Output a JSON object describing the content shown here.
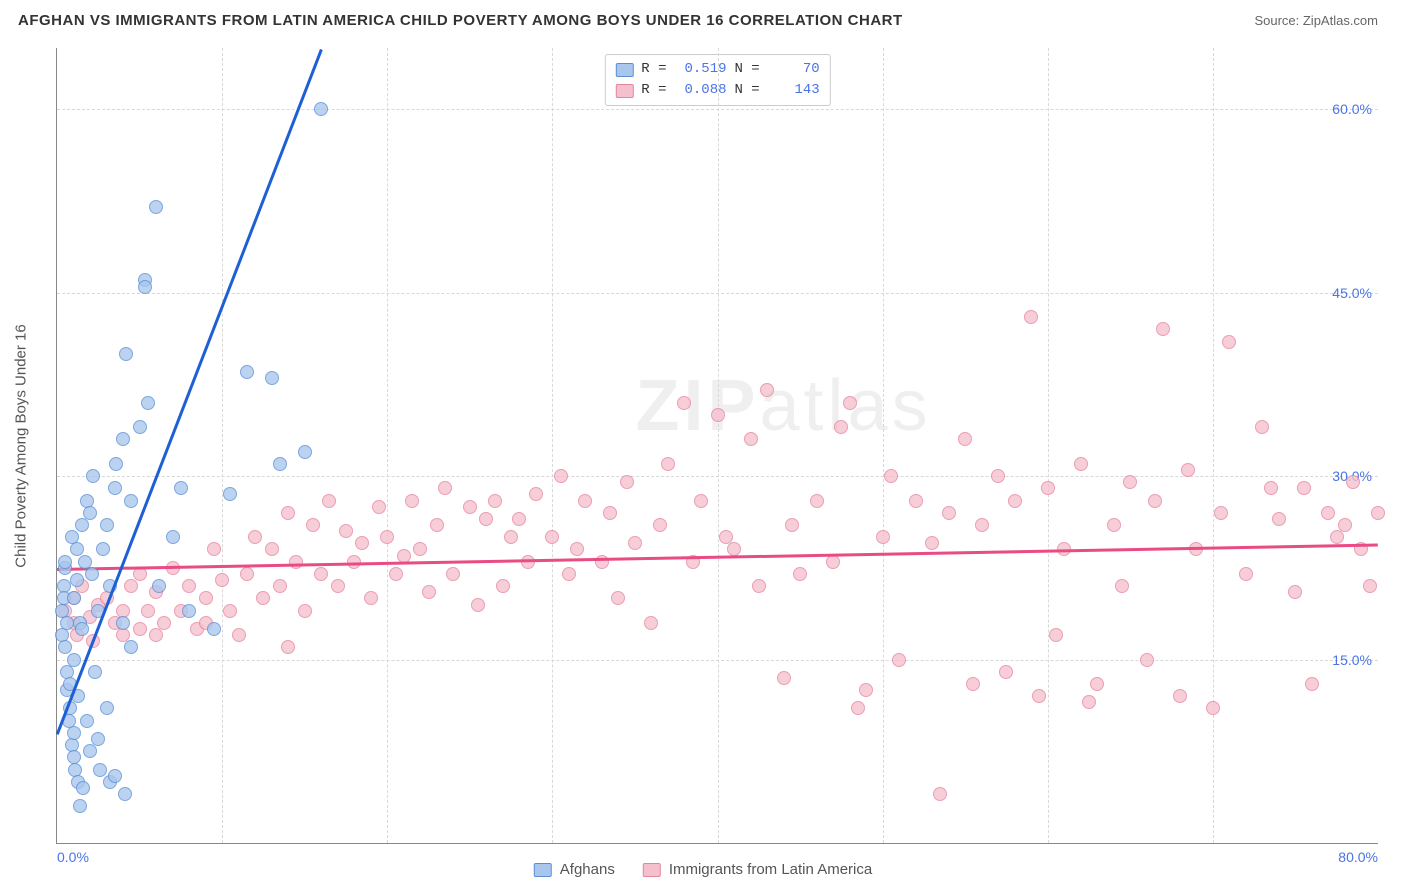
{
  "header": {
    "title": "AFGHAN VS IMMIGRANTS FROM LATIN AMERICA CHILD POVERTY AMONG BOYS UNDER 16 CORRELATION CHART",
    "source_label": "Source: ",
    "source_name": "ZipAtlas.com"
  },
  "chart": {
    "type": "scatter",
    "ylabel": "Child Poverty Among Boys Under 16",
    "xlim": [
      0,
      80
    ],
    "ylim": [
      0,
      65
    ],
    "xtick_labels": [
      "0.0%",
      "80.0%"
    ],
    "ytick_values": [
      15,
      30,
      45,
      60
    ],
    "ytick_labels": [
      "15.0%",
      "30.0%",
      "45.0%",
      "60.0%"
    ],
    "xgrid_values": [
      10,
      20,
      30,
      40,
      50,
      60,
      70
    ],
    "background_color": "#ffffff",
    "grid_color": "#d8d8d8",
    "axis_color": "#888888",
    "tick_label_color": "#4a74e8",
    "marker_size": 14,
    "marker_opacity": 0.78,
    "watermark": "ZIPatlas"
  },
  "series": {
    "afghans": {
      "label": "Afghans",
      "R": "0.519",
      "N": "70",
      "fill_color": "#a9c6ed",
      "stroke_color": "#5a8fd6",
      "line_color": "#1e5fd6",
      "trend": {
        "x1": 0,
        "y1": 9,
        "x2": 16,
        "y2": 65
      },
      "points": [
        [
          0.3,
          19
        ],
        [
          0.3,
          17
        ],
        [
          0.4,
          21
        ],
        [
          0.4,
          20
        ],
        [
          0.5,
          16
        ],
        [
          0.5,
          22.5
        ],
        [
          0.5,
          23
        ],
        [
          0.6,
          14
        ],
        [
          0.6,
          12.5
        ],
        [
          0.6,
          18
        ],
        [
          0.7,
          10
        ],
        [
          0.8,
          11
        ],
        [
          0.8,
          13
        ],
        [
          0.9,
          8
        ],
        [
          0.9,
          25
        ],
        [
          1.0,
          7
        ],
        [
          1.0,
          9
        ],
        [
          1.0,
          15
        ],
        [
          1.0,
          20
        ],
        [
          1.1,
          6
        ],
        [
          1.2,
          21.5
        ],
        [
          1.2,
          24
        ],
        [
          1.3,
          5
        ],
        [
          1.3,
          12
        ],
        [
          1.4,
          3
        ],
        [
          1.4,
          18
        ],
        [
          1.5,
          17.5
        ],
        [
          1.5,
          26
        ],
        [
          1.6,
          4.5
        ],
        [
          1.7,
          23
        ],
        [
          1.8,
          28
        ],
        [
          1.8,
          10
        ],
        [
          2.0,
          27
        ],
        [
          2.0,
          7.5
        ],
        [
          2.1,
          22
        ],
        [
          2.2,
          30
        ],
        [
          2.3,
          14
        ],
        [
          2.5,
          19
        ],
        [
          2.5,
          8.5
        ],
        [
          2.6,
          6
        ],
        [
          2.8,
          24
        ],
        [
          3.0,
          26
        ],
        [
          3.0,
          11
        ],
        [
          3.2,
          21
        ],
        [
          3.2,
          5
        ],
        [
          3.5,
          5.5
        ],
        [
          3.5,
          29
        ],
        [
          3.6,
          31
        ],
        [
          4.0,
          33
        ],
        [
          4.0,
          18
        ],
        [
          4.1,
          4
        ],
        [
          4.2,
          40
        ],
        [
          4.5,
          28
        ],
        [
          4.5,
          16
        ],
        [
          5.0,
          34
        ],
        [
          5.3,
          46
        ],
        [
          5.3,
          45.5
        ],
        [
          5.5,
          36
        ],
        [
          6.0,
          52
        ],
        [
          6.2,
          21
        ],
        [
          7.0,
          25
        ],
        [
          7.5,
          29
        ],
        [
          8.0,
          19
        ],
        [
          9.5,
          17.5
        ],
        [
          10.5,
          28.5
        ],
        [
          11.5,
          38.5
        ],
        [
          13.0,
          38
        ],
        [
          13.5,
          31
        ],
        [
          15.0,
          32
        ],
        [
          16.0,
          60
        ]
      ]
    },
    "latin": {
      "label": "Immigrants from Latin America",
      "R": "0.088",
      "N": "143",
      "fill_color": "#f5c0cd",
      "stroke_color": "#e584a0",
      "line_color": "#e94b84",
      "trend": {
        "x1": 0,
        "y1": 22.5,
        "x2": 80,
        "y2": 24.5
      },
      "points": [
        [
          0.5,
          19
        ],
        [
          1,
          18
        ],
        [
          1,
          20
        ],
        [
          1.2,
          17
        ],
        [
          1.5,
          21
        ],
        [
          2,
          18.5
        ],
        [
          2.2,
          16.5
        ],
        [
          2.5,
          19.5
        ],
        [
          3,
          20
        ],
        [
          3.5,
          18
        ],
        [
          4,
          17
        ],
        [
          4,
          19
        ],
        [
          4.5,
          21
        ],
        [
          5,
          17.5
        ],
        [
          5,
          22
        ],
        [
          5.5,
          19
        ],
        [
          6,
          20.5
        ],
        [
          6,
          17
        ],
        [
          6.5,
          18
        ],
        [
          7,
          22.5
        ],
        [
          7.5,
          19
        ],
        [
          8,
          21
        ],
        [
          8.5,
          17.5
        ],
        [
          9,
          18
        ],
        [
          9,
          20
        ],
        [
          9.5,
          24
        ],
        [
          10,
          21.5
        ],
        [
          10.5,
          19
        ],
        [
          11,
          17
        ],
        [
          11.5,
          22
        ],
        [
          12,
          25
        ],
        [
          12.5,
          20
        ],
        [
          13,
          24
        ],
        [
          13.5,
          21
        ],
        [
          14,
          16
        ],
        [
          14,
          27
        ],
        [
          14.5,
          23
        ],
        [
          15,
          19
        ],
        [
          15.5,
          26
        ],
        [
          16,
          22
        ],
        [
          16.5,
          28
        ],
        [
          17,
          21
        ],
        [
          17.5,
          25.5
        ],
        [
          18,
          23
        ],
        [
          18.5,
          24.5
        ],
        [
          19,
          20
        ],
        [
          19.5,
          27.5
        ],
        [
          20,
          25
        ],
        [
          20.5,
          22
        ],
        [
          21,
          23.5
        ],
        [
          21.5,
          28
        ],
        [
          22,
          24
        ],
        [
          22.5,
          20.5
        ],
        [
          23,
          26
        ],
        [
          23.5,
          29
        ],
        [
          24,
          22
        ],
        [
          25,
          27.5
        ],
        [
          25.5,
          19.5
        ],
        [
          26,
          26.5
        ],
        [
          26.5,
          28
        ],
        [
          27,
          21
        ],
        [
          27.5,
          25
        ],
        [
          28,
          26.5
        ],
        [
          28.5,
          23
        ],
        [
          29,
          28.5
        ],
        [
          30,
          25
        ],
        [
          30.5,
          30
        ],
        [
          31,
          22
        ],
        [
          31.5,
          24
        ],
        [
          32,
          28
        ],
        [
          33,
          23
        ],
        [
          33.5,
          27
        ],
        [
          34,
          20
        ],
        [
          34.5,
          29.5
        ],
        [
          35,
          24.5
        ],
        [
          36,
          18
        ],
        [
          36.5,
          26
        ],
        [
          37,
          31
        ],
        [
          38,
          36
        ],
        [
          38.5,
          23
        ],
        [
          39,
          28
        ],
        [
          40,
          35
        ],
        [
          40.5,
          25
        ],
        [
          41,
          24
        ],
        [
          42,
          33
        ],
        [
          42.5,
          21
        ],
        [
          43,
          37
        ],
        [
          44,
          13.5
        ],
        [
          44.5,
          26
        ],
        [
          45,
          22
        ],
        [
          46,
          28
        ],
        [
          47,
          23
        ],
        [
          47.5,
          34
        ],
        [
          48,
          36
        ],
        [
          48.5,
          11
        ],
        [
          49,
          12.5
        ],
        [
          50,
          25
        ],
        [
          50.5,
          30
        ],
        [
          51,
          15
        ],
        [
          52,
          28
        ],
        [
          53,
          24.5
        ],
        [
          53.5,
          4
        ],
        [
          54,
          27
        ],
        [
          55,
          33
        ],
        [
          55.5,
          13
        ],
        [
          56,
          26
        ],
        [
          57,
          30
        ],
        [
          57.5,
          14
        ],
        [
          58,
          28
        ],
        [
          59,
          43
        ],
        [
          59.5,
          12
        ],
        [
          60,
          29
        ],
        [
          60.5,
          17
        ],
        [
          61,
          24
        ],
        [
          62,
          31
        ],
        [
          62.5,
          11.5
        ],
        [
          63,
          13
        ],
        [
          64,
          26
        ],
        [
          64.5,
          21
        ],
        [
          65,
          29.5
        ],
        [
          66,
          15
        ],
        [
          66.5,
          28
        ],
        [
          67,
          42
        ],
        [
          68,
          12
        ],
        [
          68.5,
          30.5
        ],
        [
          69,
          24
        ],
        [
          70,
          11
        ],
        [
          70.5,
          27
        ],
        [
          71,
          41
        ],
        [
          72,
          22
        ],
        [
          73,
          34
        ],
        [
          73.5,
          29
        ],
        [
          74,
          26.5
        ],
        [
          75,
          20.5
        ],
        [
          75.5,
          29
        ],
        [
          76,
          13
        ],
        [
          77,
          27
        ],
        [
          77.5,
          25
        ],
        [
          78,
          26
        ],
        [
          78.5,
          29.5
        ],
        [
          79,
          24
        ],
        [
          79.5,
          21
        ],
        [
          80,
          27
        ]
      ]
    }
  },
  "legend_top": {
    "r_label": "R =",
    "n_label": "N ="
  }
}
